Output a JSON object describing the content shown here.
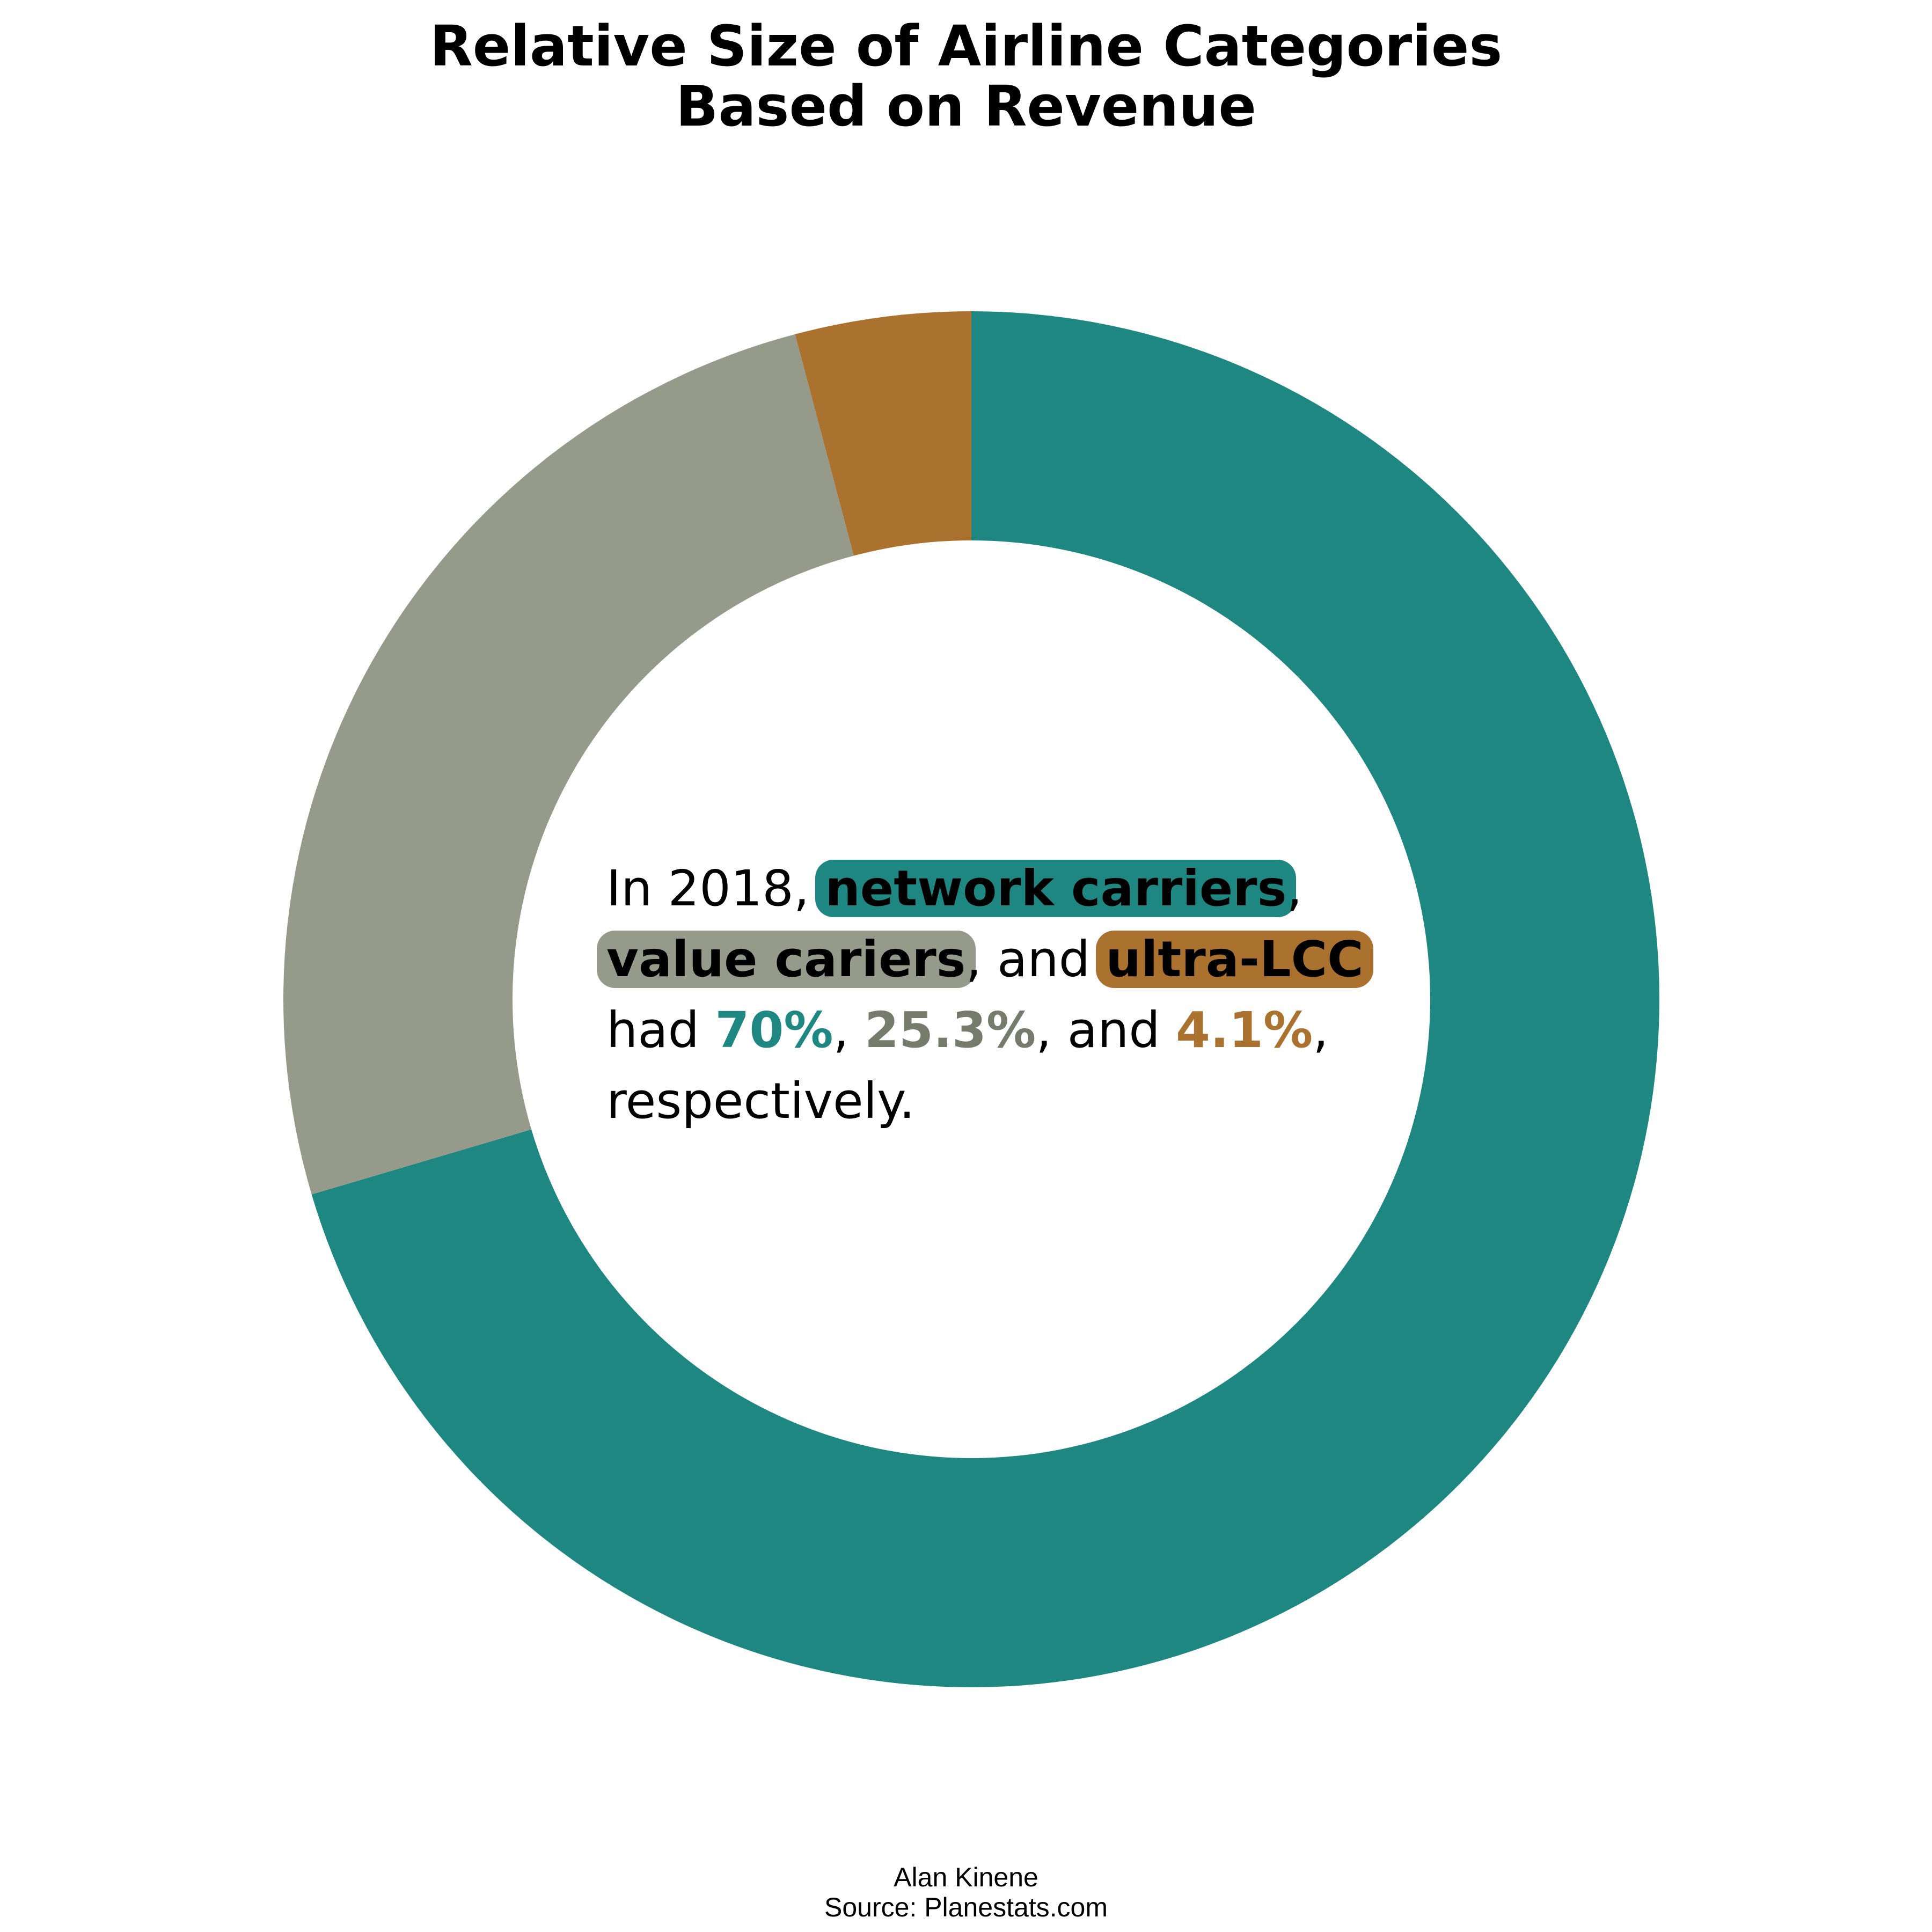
{
  "chart_data": {
    "type": "pie",
    "variant": "donut",
    "title": "Relative Size of Airline Categories Based on Revenue",
    "title_lines": [
      "Relative Size of Airline Categories",
      "Based on Revenue"
    ],
    "categories": [
      "network carriers",
      "value cariers",
      "ultra-LCC"
    ],
    "values": [
      70,
      25.3,
      4.1
    ],
    "colors": [
      "#1e8781",
      "#959a8a",
      "#aa712f"
    ],
    "value_text_colors": [
      "#1e8781",
      "#777b6c",
      "#aa712f"
    ],
    "start": "top, clockwise",
    "legend": "none"
  },
  "annotation": {
    "intro": "In 2018, ",
    "cat1": "network carriers",
    "sep1": ",",
    "cat2": "value cariers",
    "sep2": ", and ",
    "cat3": "ultra-LCC",
    "had": "had ",
    "pct1": "70%",
    "sep3": ", ",
    "pct2": "25.3%",
    "sep4": ", and ",
    "pct3": "4.1%",
    "sep5": ",",
    "outro": "respectively."
  },
  "credits": {
    "author": "Alan Kinene",
    "source": "Source: Planestats.com"
  }
}
